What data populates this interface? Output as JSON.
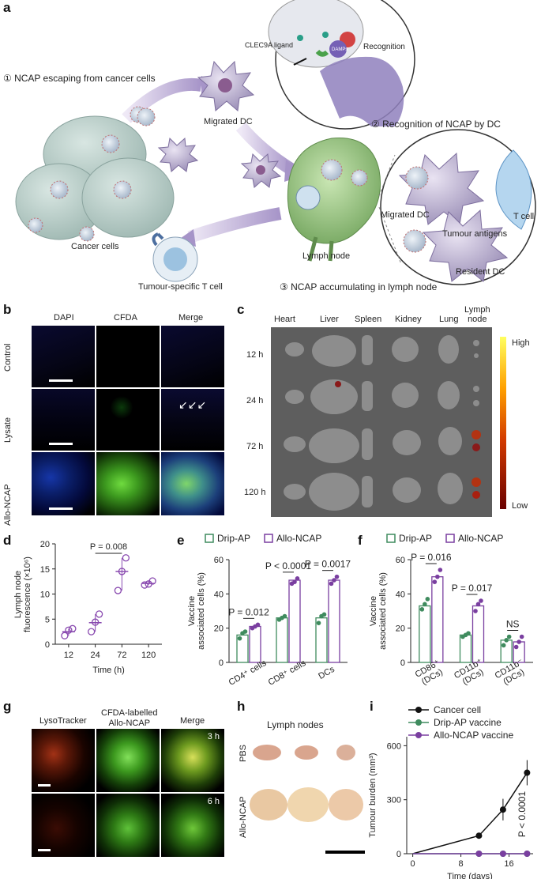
{
  "panels": {
    "a": "a",
    "b": "b",
    "c": "c",
    "d": "d",
    "e": "e",
    "f": "f",
    "g": "g",
    "h": "h",
    "i": "i"
  },
  "schematic": {
    "step1": "① NCAP escaping from cancer cells",
    "step2": "② Recognition of NCAP by DC",
    "step3": "③ NCAP accumulating in lymph node",
    "migrated_dc": "Migrated DC",
    "migrated_dc_inset": "Migrated DC",
    "clec9a": "CLEC9A ligand",
    "damps": "DAMPs",
    "recognition": "Recognition",
    "cancer_cells": "Cancer cells",
    "t_cell_specific": "Tumour-specific T cell",
    "lymph_node": "Lymph node",
    "t_cell": "T cell",
    "tumour_antigens": "Tumour antigens",
    "resident_dc": "Resident DC"
  },
  "panel_b": {
    "columns": [
      "DAPI",
      "CFDA",
      "Merge"
    ],
    "rows": [
      "Control",
      "Lysate",
      "Allo-NCAP"
    ]
  },
  "panel_c": {
    "organs": [
      "Heart",
      "Liver",
      "Spleen",
      "Kidney",
      "Lung",
      "Lymph\nnode"
    ],
    "times": [
      "12 h",
      "24 h",
      "72 h",
      "120 h"
    ],
    "scale_high": "High",
    "scale_low": "Low"
  },
  "panel_g": {
    "columns": [
      "LysoTracker",
      "CFDA-labelled\nAllo-NCAP",
      "Merge"
    ],
    "times": [
      "3 h",
      "6 h"
    ]
  },
  "panel_h": {
    "title": "Lymph nodes",
    "rows": [
      "PBS",
      "Allo-NCAP"
    ]
  },
  "chart_data": [
    {
      "panel": "d",
      "type": "scatter",
      "ylabel": "Lymph node\nfluorescence (×10⁶)",
      "xlabel": "Time (h)",
      "categories": [
        "12",
        "24",
        "72",
        "120"
      ],
      "ylim": [
        0,
        20
      ],
      "yticks": [
        0,
        5,
        10,
        15,
        20
      ],
      "points": [
        [
          1.7,
          2.8,
          3.1
        ],
        [
          2.5,
          4.4,
          6.0
        ],
        [
          10.7,
          14.5,
          17.2
        ],
        [
          11.8,
          12.0,
          12.6
        ]
      ],
      "means": [
        2.5,
        4.3,
        14.5,
        12.1
      ],
      "annotation": "P = 0.008",
      "color": "#8a4bb0"
    },
    {
      "panel": "e",
      "type": "bar",
      "ylabel": "Vaccine\nassociated cells (%)",
      "categories": [
        "CD4⁺ cells",
        "CD8⁺ cells",
        "DCs"
      ],
      "ylim": [
        0,
        60
      ],
      "yticks": [
        0,
        20,
        40,
        60
      ],
      "series": [
        {
          "name": "Drip-AP",
          "color": "#3f8b5e",
          "values": [
            16,
            26,
            26
          ],
          "points": [
            [
              14,
              17,
              18
            ],
            [
              25,
              26,
              27
            ],
            [
              23,
              27,
              28
            ]
          ]
        },
        {
          "name": "Allo-NCAP",
          "color": "#7a3fa0",
          "values": [
            21,
            48,
            48
          ],
          "points": [
            [
              20,
              21,
              22
            ],
            [
              46,
              47,
              49
            ],
            [
              46,
              48,
              50
            ]
          ]
        }
      ],
      "annotations": [
        "P = 0.012",
        "P < 0.0001",
        "P = 0.0017"
      ]
    },
    {
      "panel": "f",
      "type": "bar",
      "ylabel": "Vaccine\nassociated cells (%)",
      "categories": [
        "CD86⁺\n(DCs)",
        "CD11b⁺\n(DCs)",
        "CD11b⁻\n(DCs)"
      ],
      "ylim": [
        0,
        60
      ],
      "yticks": [
        0,
        20,
        40,
        60
      ],
      "series": [
        {
          "name": "Drip-AP",
          "color": "#3f8b5e",
          "values": [
            33,
            16,
            13
          ],
          "points": [
            [
              31,
              34,
              37
            ],
            [
              15,
              16,
              17
            ],
            [
              10,
              13,
              15
            ]
          ]
        },
        {
          "name": "Allo-NCAP",
          "color": "#7a3fa0",
          "values": [
            50,
            33,
            12
          ],
          "points": [
            [
              47,
              50,
              54
            ],
            [
              30,
              34,
              36
            ],
            [
              9,
              12,
              15
            ]
          ]
        }
      ],
      "annotations": [
        "P = 0.016",
        "P = 0.017",
        "NS"
      ]
    },
    {
      "panel": "i",
      "type": "line",
      "ylabel": "Tumour burden (mm³)",
      "xlabel": "Time (days)",
      "xticks": [
        0,
        8,
        16
      ],
      "yticks": [
        0,
        300,
        600
      ],
      "xlim": [
        -1,
        20
      ],
      "ylim": [
        0,
        650
      ],
      "series": [
        {
          "name": "Cancer cell",
          "color": "#111111",
          "x": [
            0,
            11,
            15,
            19
          ],
          "y": [
            0,
            100,
            245,
            450
          ],
          "err": [
            0,
            15,
            60,
            70
          ]
        },
        {
          "name": "Drip-AP vaccine",
          "color": "#3f8b5e",
          "x": [
            0,
            11,
            15,
            19
          ],
          "y": [
            0,
            0,
            0,
            0
          ],
          "err": [
            0,
            0,
            0,
            0
          ]
        },
        {
          "name": "Allo-NCAP vaccine",
          "color": "#7a3fa0",
          "x": [
            0,
            11,
            15,
            19
          ],
          "y": [
            0,
            0,
            0,
            0
          ],
          "err": [
            0,
            0,
            0,
            0
          ]
        }
      ],
      "annotation": "P < 0.0001"
    }
  ]
}
